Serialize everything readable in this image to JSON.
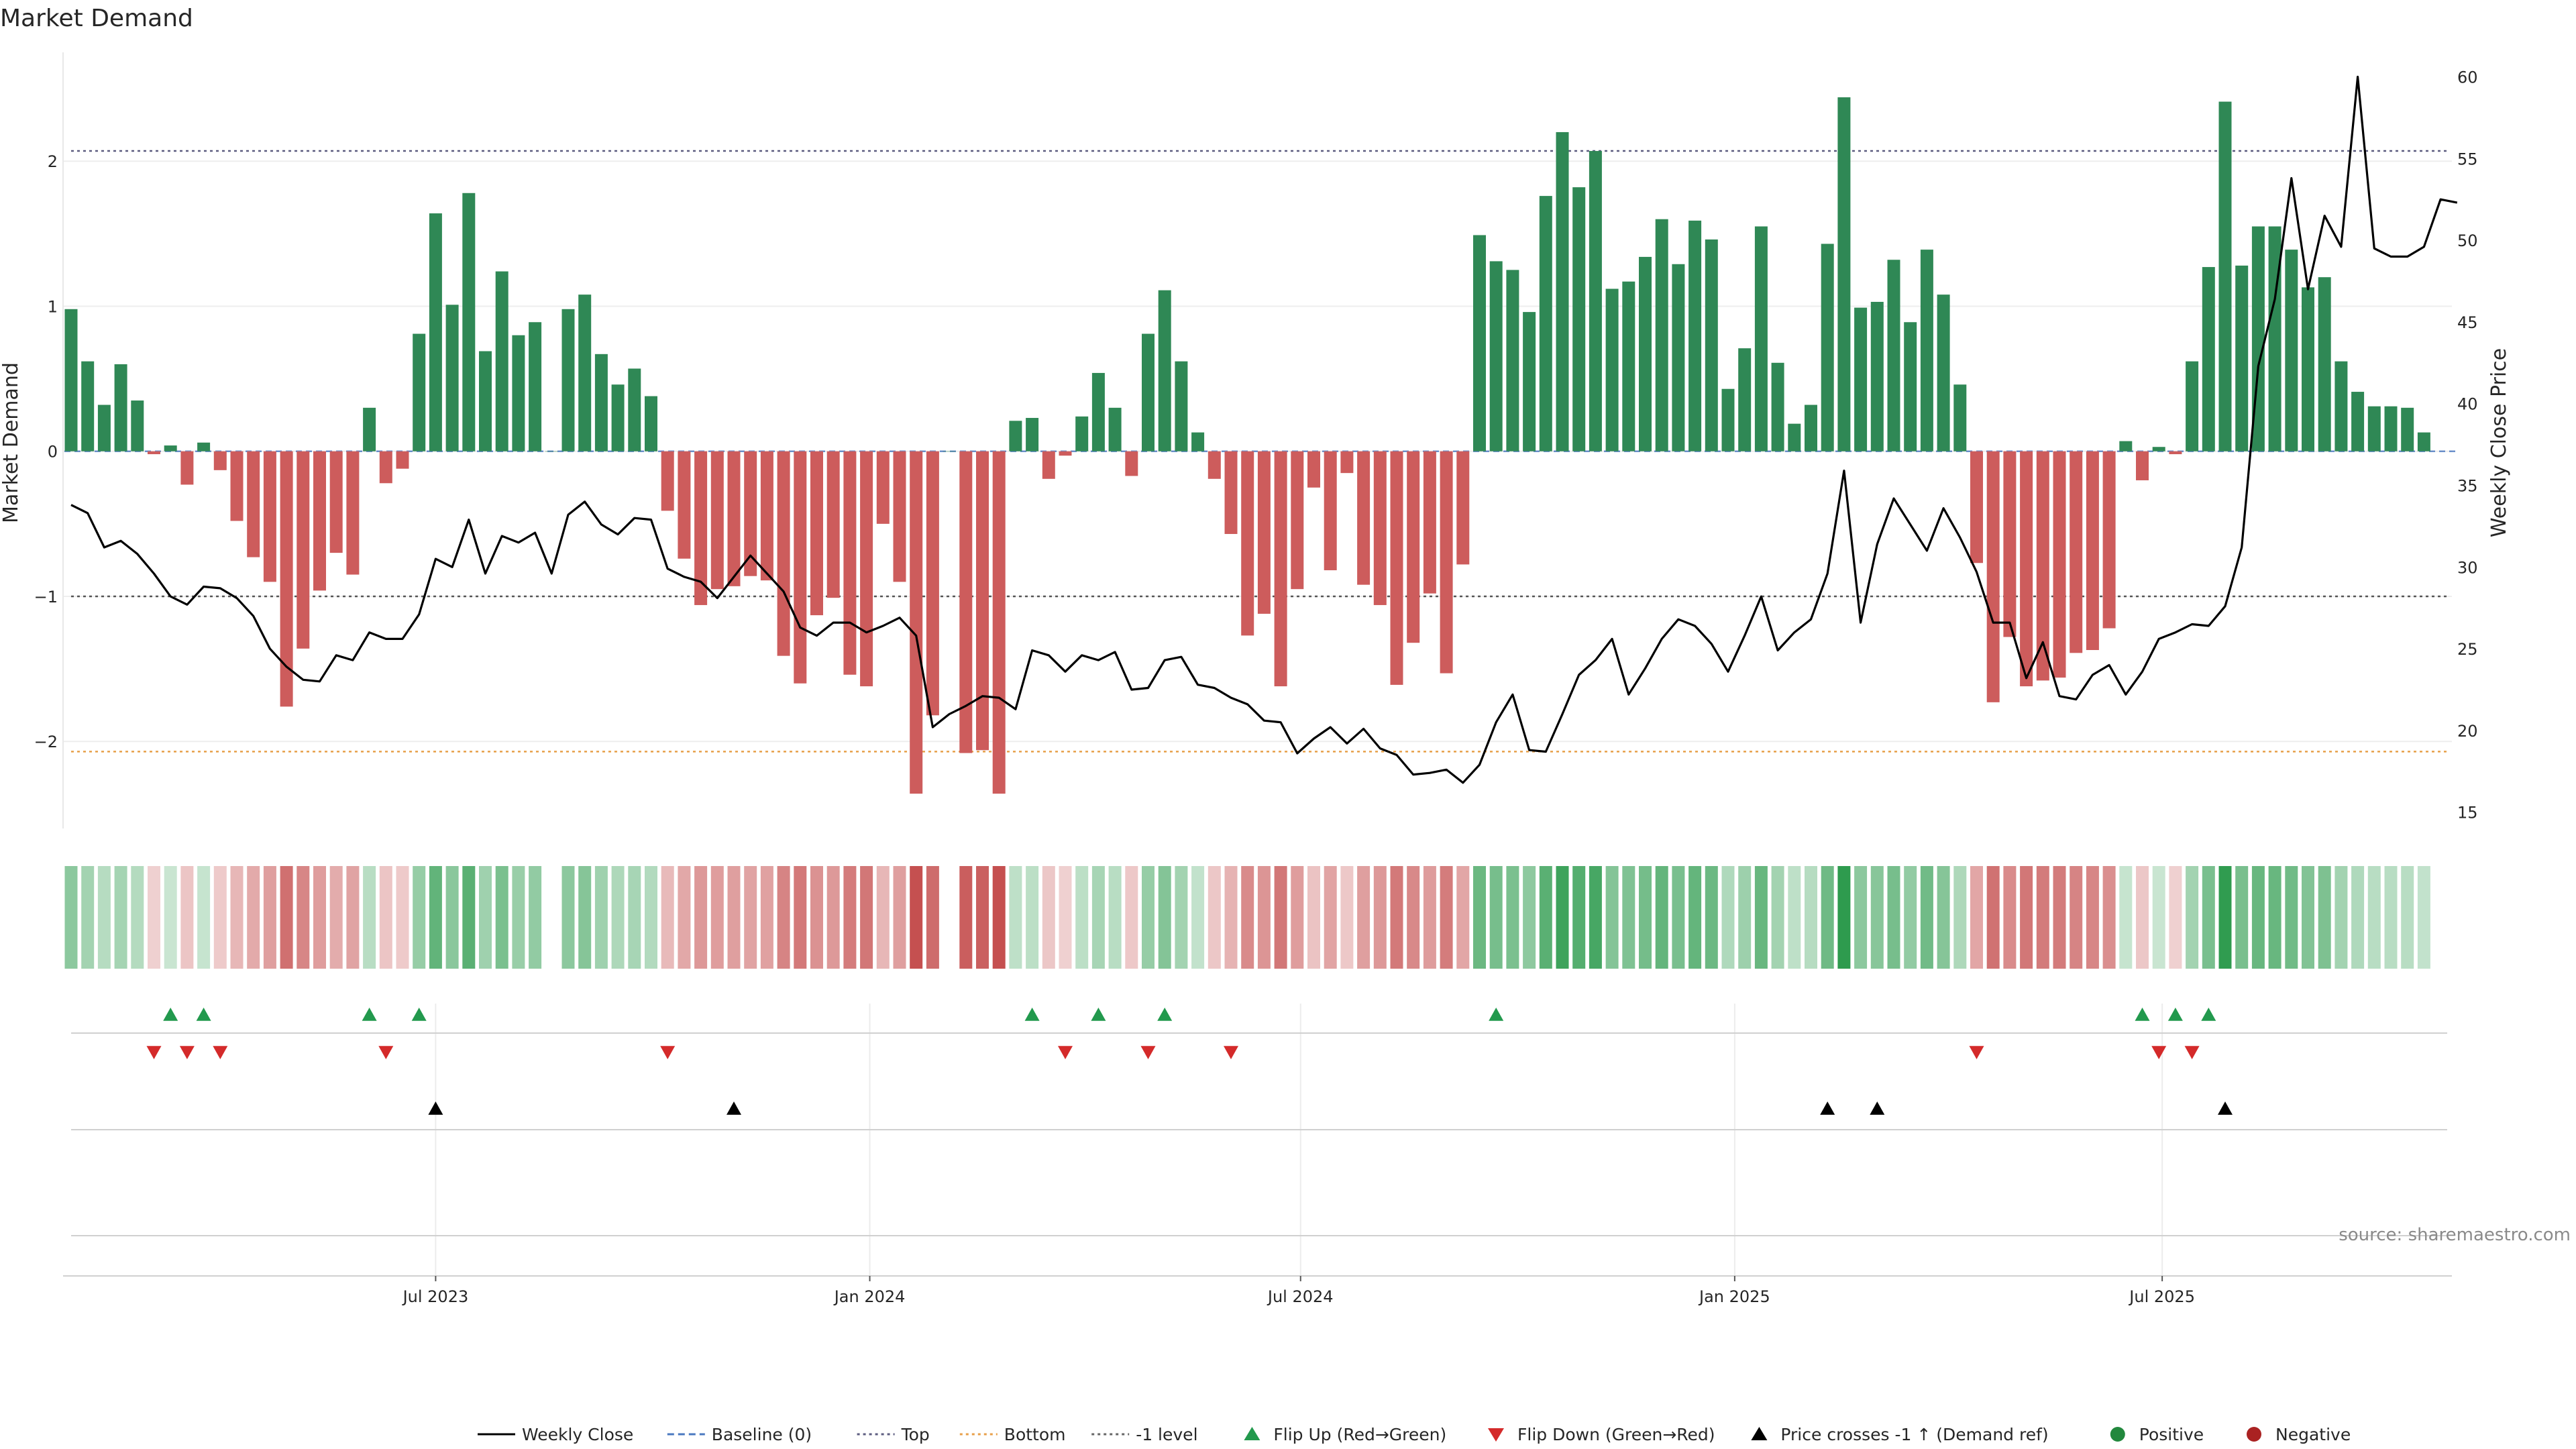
{
  "chart_data": {
    "type": "bar",
    "title": "Market Demand",
    "source": "source: sharemaestro.com",
    "left_axis": {
      "label": "Market Demand",
      "range": [
        -2.6,
        2.75
      ],
      "ticks": [
        2,
        1,
        0,
        -1,
        -2
      ],
      "tick_labels": [
        "2",
        "1",
        "0",
        "−1",
        "−2"
      ]
    },
    "right_axis": {
      "label": "Weekly Close Price",
      "range": [
        14,
        61.5
      ],
      "ticks": [
        15,
        20,
        25,
        30,
        35,
        40,
        45,
        50,
        55,
        60
      ],
      "tick_labels": [
        "15",
        "20",
        "25",
        "30",
        "35",
        "40",
        "45",
        "50",
        "55",
        "60"
      ]
    },
    "reference_lines": {
      "top": 2.07,
      "bottom": -2.07,
      "minus_one": -1.0,
      "baseline": 0
    },
    "x_ticks": [
      {
        "label": "Jul 2023",
        "week": 22
      },
      {
        "label": "Jan 2024",
        "week": 48.2
      },
      {
        "label": "Jul 2024",
        "week": 74.2
      },
      {
        "label": "Jan 2025",
        "week": 100.4
      },
      {
        "label": "Jul 2025",
        "week": 126.2
      }
    ],
    "series": [
      {
        "name": "Market Demand",
        "values": [
          0.98,
          0.62,
          0.32,
          0.6,
          0.35,
          -0.02,
          0.04,
          -0.23,
          0.06,
          -0.13,
          -0.48,
          -0.73,
          -0.9,
          -1.76,
          -1.36,
          -0.96,
          -0.7,
          -0.85,
          0.3,
          -0.22,
          -0.12,
          0.81,
          1.64,
          1.01,
          1.78,
          0.69,
          1.24,
          0.8,
          0.89,
          0.0,
          0.98,
          1.08,
          0.67,
          0.46,
          0.57,
          0.38,
          -0.41,
          -0.74,
          -1.06,
          -0.95,
          -0.93,
          -0.86,
          -0.89,
          -1.41,
          -1.6,
          -1.13,
          -1.01,
          -1.54,
          -1.62,
          -0.5,
          -0.9,
          -2.36,
          -1.82,
          0.0,
          -2.08,
          -2.06,
          -2.36,
          0.21,
          0.23,
          -0.19,
          -0.03,
          0.24,
          0.54,
          0.3,
          -0.17,
          0.81,
          1.11,
          0.62,
          0.13,
          -0.19,
          -0.57,
          -1.27,
          -1.12,
          -1.62,
          -0.95,
          -0.25,
          -0.82,
          -0.15,
          -0.92,
          -1.06,
          -1.61,
          -1.32,
          -0.98,
          -1.53,
          -0.78,
          1.49,
          1.31,
          1.25,
          0.96,
          1.76,
          2.2,
          1.82,
          2.07,
          1.12,
          1.17,
          1.34,
          1.6,
          1.29,
          1.59,
          1.46,
          0.43,
          0.71,
          1.55,
          0.61,
          0.19,
          0.32,
          1.43,
          2.44,
          0.99,
          1.03,
          1.32,
          0.89,
          1.39,
          1.08,
          0.46,
          -0.77,
          -1.73,
          -1.28,
          -1.62,
          -1.58,
          -1.56,
          -1.39,
          -1.37,
          -1.22,
          0.07,
          -0.2,
          0.03,
          -0.02,
          0.62,
          1.27,
          2.41,
          1.28,
          1.55,
          1.55,
          1.39,
          1.13,
          1.2,
          0.62,
          0.41,
          0.31,
          0.31,
          0.3,
          0.13
        ]
      },
      {
        "name": "Weekly Close",
        "values": [
          33.8,
          33.3,
          31.2,
          31.6,
          30.8,
          29.6,
          28.2,
          27.7,
          28.8,
          28.7,
          28.1,
          27.0,
          25.0,
          23.9,
          23.1,
          23.0,
          24.6,
          24.3,
          26.0,
          25.6,
          25.6,
          27.1,
          30.5,
          30.0,
          32.9,
          29.6,
          31.9,
          31.5,
          32.1,
          29.6,
          33.2,
          34.0,
          32.6,
          32.0,
          33.0,
          32.9,
          29.9,
          29.4,
          29.1,
          28.1,
          29.4,
          30.7,
          29.6,
          28.5,
          26.3,
          25.8,
          26.6,
          26.6,
          26.0,
          26.4,
          26.9,
          25.8,
          20.2,
          21.0,
          21.5,
          22.1,
          22.0,
          21.3,
          24.9,
          24.6,
          23.6,
          24.6,
          24.3,
          24.8,
          22.5,
          22.6,
          24.3,
          24.5,
          22.8,
          22.6,
          22.0,
          21.6,
          20.6,
          20.5,
          18.6,
          19.5,
          20.2,
          19.2,
          20.1,
          18.9,
          18.5,
          17.3,
          17.4,
          17.6,
          16.8,
          17.9,
          20.5,
          22.2,
          18.8,
          18.7,
          21.0,
          23.4,
          24.3,
          25.6,
          22.2,
          23.8,
          25.6,
          26.8,
          26.4,
          25.3,
          23.6,
          25.8,
          28.2,
          24.9,
          26.0,
          26.8,
          29.6,
          35.9,
          26.6,
          31.4,
          34.2,
          32.6,
          31.0,
          33.6,
          31.8,
          29.7,
          26.6,
          26.6,
          23.2,
          25.4,
          22.1,
          21.9,
          23.4,
          24.0,
          22.2,
          23.6,
          25.6,
          26.0,
          26.5,
          26.4,
          27.6,
          31.2,
          42.3,
          46.4,
          53.8,
          47.0,
          51.5,
          49.6,
          60.0,
          49.5,
          49.0,
          49.0,
          49.6,
          52.5,
          52.3
        ]
      }
    ],
    "flip_up_weeks": [
      6,
      8,
      18,
      21,
      58,
      62,
      66,
      86,
      125,
      127,
      129
    ],
    "flip_down_weeks": [
      5,
      7,
      9,
      19,
      36,
      60,
      65,
      70,
      115,
      126,
      128
    ],
    "price_cross_weeks": [
      22,
      40,
      106,
      109,
      130
    ],
    "legend": [
      {
        "label": "Weekly Close",
        "icon": "line-solid",
        "color": "#000000"
      },
      {
        "label": "Baseline (0)",
        "icon": "line-dashed",
        "color": "#4a78c0"
      },
      {
        "label": "Top",
        "icon": "line-dotted",
        "color": "#5d5d80"
      },
      {
        "label": "Bottom",
        "icon": "line-dotted",
        "color": "#e8a04a"
      },
      {
        "label": "-1 level",
        "icon": "line-dotted",
        "color": "#666666"
      },
      {
        "label": "Flip Up (Red→Green)",
        "icon": "triangle-up",
        "color": "#22994d"
      },
      {
        "label": "Flip Down (Green→Red)",
        "icon": "triangle-down",
        "color": "#d42a2a"
      },
      {
        "label": "Price crosses -1 ↑ (Demand ref)",
        "icon": "triangle-up",
        "color": "#000000"
      },
      {
        "label": "Positive",
        "icon": "circle",
        "color": "#22883d"
      },
      {
        "label": "Negative",
        "icon": "circle",
        "color": "#aa2222"
      }
    ],
    "colors": {
      "positive": "#2f8855",
      "negative": "#cd5c5c",
      "price": "#000000"
    }
  }
}
